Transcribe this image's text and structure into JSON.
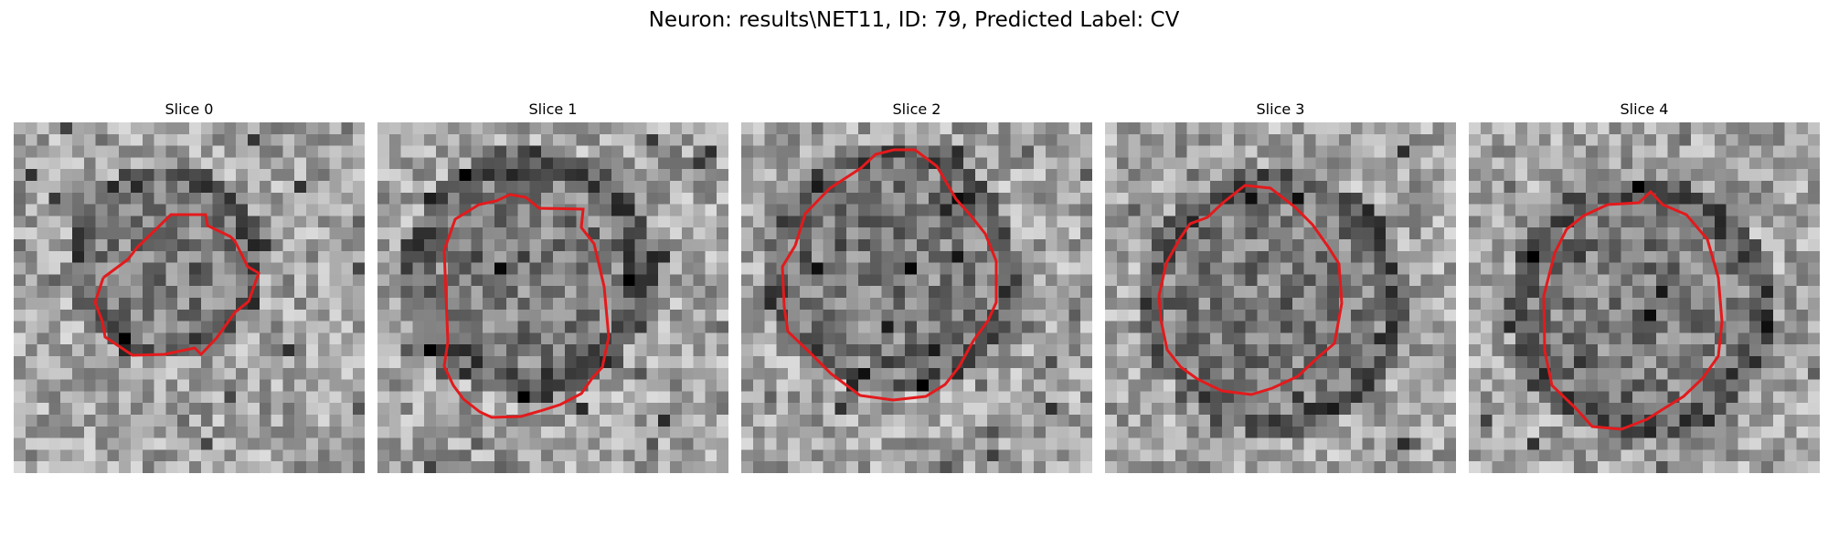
{
  "figure": {
    "title": "Neuron: results\\NET11, ID: 79, Predicted Label: CV",
    "contour_color": "#e31a1c",
    "colormap": "gray"
  },
  "slices": [
    {
      "title": "Slice 0"
    },
    {
      "title": "Slice 1"
    },
    {
      "title": "Slice 2"
    },
    {
      "title": "Slice 3"
    },
    {
      "title": "Slice 4"
    }
  ]
}
